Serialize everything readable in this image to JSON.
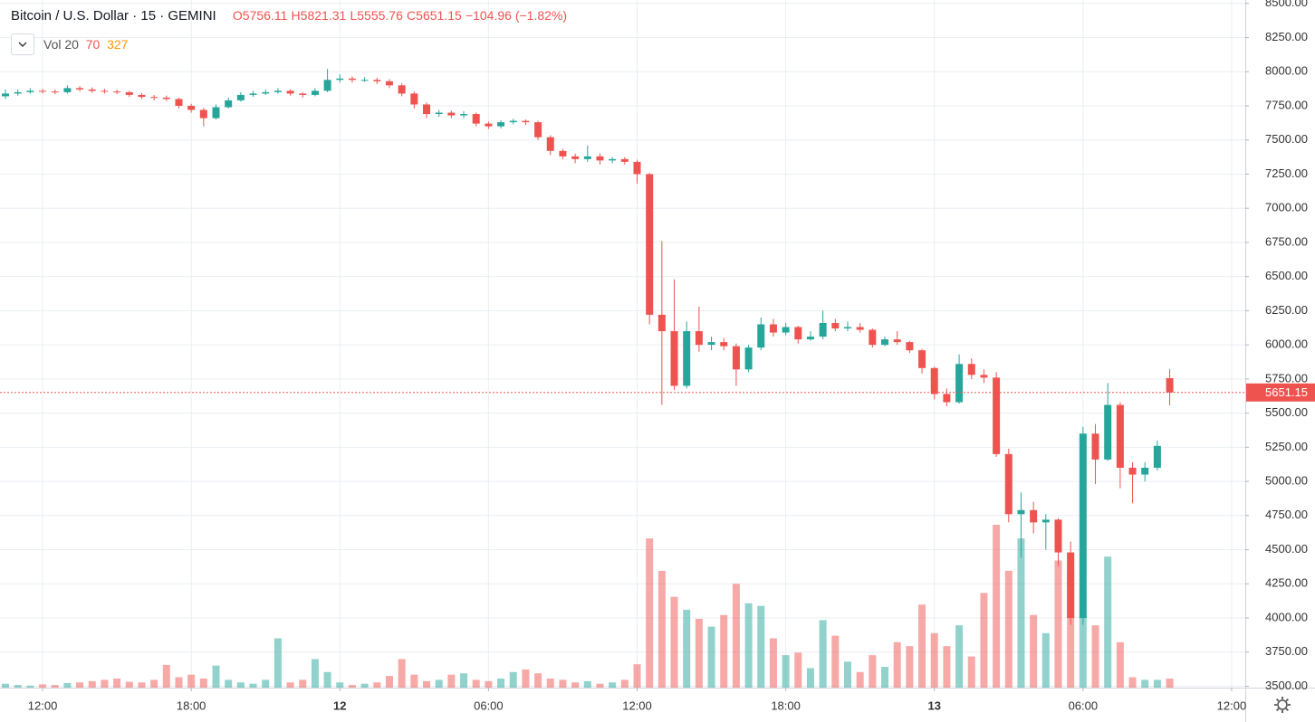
{
  "chart_data": {
    "type": "candlestick",
    "title": "Bitcoin / U.S. Dollar · 15 · GEMINI",
    "legend_labels": [
      "O",
      "H",
      "L",
      "C"
    ],
    "change": "−104.96 (−1.82%)",
    "volume_legend": {
      "name": "Vol",
      "length": 20,
      "value": 70,
      "ma": 327
    },
    "up_color": "#26a69a",
    "down_color": "#ef5350",
    "grid": true,
    "x": [
      10.5,
      11,
      11.5,
      12,
      12.5,
      13,
      13.5,
      14,
      14.5,
      15,
      15.5,
      16,
      16.5,
      17,
      17.5,
      18,
      18.5,
      19,
      19.5,
      20,
      20.5,
      21,
      21.5,
      22,
      22.5,
      23,
      23.5,
      24,
      24.5,
      25,
      25.5,
      26,
      26.5,
      27,
      27.5,
      28,
      28.5,
      29,
      29.5,
      30,
      30.5,
      31,
      31.5,
      32,
      32.5,
      33,
      33.5,
      34,
      34.5,
      35,
      35.5,
      36,
      36.5,
      37,
      37.5,
      38,
      38.5,
      39,
      39.5,
      40,
      40.5,
      41,
      41.5,
      42,
      42.5,
      43,
      43.5,
      44,
      44.5,
      45,
      45.5,
      46,
      46.5,
      47,
      47.5,
      48,
      48.5,
      49,
      49.5,
      50,
      50.5,
      51,
      51.5,
      52,
      52.5,
      53,
      53.5,
      54,
      54.5,
      55,
      55.5,
      56,
      56.5,
      57,
      57.5
    ],
    "open": [
      7820,
      7840,
      7850,
      7860,
      7855,
      7850,
      7880,
      7870,
      7860,
      7855,
      7850,
      7830,
      7815,
      7810,
      7800,
      7750,
      7720,
      7660,
      7740,
      7790,
      7830,
      7840,
      7850,
      7860,
      7840,
      7830,
      7860,
      7940,
      7950,
      7940,
      7940,
      7930,
      7900,
      7840,
      7760,
      7690,
      7700,
      7680,
      7690,
      7620,
      7600,
      7630,
      7640,
      7630,
      7520,
      7420,
      7380,
      7360,
      7380,
      7350,
      7360,
      7340,
      7250,
      6220,
      6100,
      5700,
      6100,
      6000,
      6020,
      5990,
      5820,
      5980,
      6150,
      6090,
      6130,
      6040,
      6060,
      6160,
      6120,
      6130,
      6110,
      6000,
      6040,
      6020,
      5960,
      5830,
      5640,
      5580,
      5860,
      5780,
      5760,
      5200,
      4760,
      4790,
      4700,
      4720,
      4480,
      4000,
      5350,
      5160,
      5560,
      5100,
      5050,
      5100,
      5756.11
    ],
    "high": [
      7870,
      7870,
      7880,
      7875,
      7870,
      7900,
      7895,
      7885,
      7875,
      7870,
      7860,
      7845,
      7830,
      7825,
      7810,
      7765,
      7735,
      7760,
      7810,
      7850,
      7860,
      7870,
      7880,
      7870,
      7850,
      7880,
      8020,
      7980,
      7965,
      7960,
      7955,
      7945,
      7915,
      7855,
      7775,
      7720,
      7715,
      7710,
      7700,
      7635,
      7645,
      7655,
      7650,
      7640,
      7535,
      7435,
      7400,
      7460,
      7400,
      7375,
      7375,
      7355,
      7260,
      6760,
      6480,
      6170,
      6280,
      6060,
      6050,
      6010,
      6000,
      6200,
      6190,
      6160,
      6140,
      6100,
      6250,
      6190,
      6170,
      6160,
      6120,
      6060,
      6100,
      6030,
      5970,
      5840,
      5680,
      5930,
      5900,
      5820,
      5800,
      5240,
      4920,
      4850,
      4760,
      4730,
      4560,
      5400,
      5420,
      5720,
      5580,
      5140,
      5140,
      5300,
      5821.31
    ],
    "low": [
      7800,
      7825,
      7840,
      7840,
      7835,
      7840,
      7855,
      7845,
      7840,
      7835,
      7815,
      7800,
      7790,
      7785,
      7730,
      7700,
      7600,
      7650,
      7730,
      7780,
      7815,
      7830,
      7840,
      7825,
      7810,
      7820,
      7850,
      7920,
      7920,
      7925,
      7910,
      7880,
      7820,
      7730,
      7660,
      7670,
      7660,
      7660,
      7600,
      7580,
      7585,
      7615,
      7610,
      7500,
      7390,
      7360,
      7330,
      7340,
      7320,
      7330,
      7320,
      7180,
      6150,
      5560,
      5670,
      5680,
      5950,
      5960,
      5960,
      5700,
      5800,
      5960,
      6060,
      6070,
      6010,
      6030,
      6040,
      6100,
      6100,
      6090,
      5980,
      5990,
      6000,
      5940,
      5790,
      5600,
      5550,
      5570,
      5750,
      5720,
      5180,
      4700,
      4440,
      4620,
      4500,
      4380,
      3950,
      3950,
      4980,
      5150,
      4950,
      4840,
      5000,
      5080,
      5555.76
    ],
    "close": [
      7840,
      7850,
      7860,
      7855,
      7850,
      7880,
      7870,
      7860,
      7855,
      7850,
      7830,
      7815,
      7810,
      7800,
      7750,
      7720,
      7660,
      7740,
      7790,
      7830,
      7840,
      7850,
      7860,
      7840,
      7830,
      7860,
      7940,
      7950,
      7940,
      7940,
      7930,
      7900,
      7840,
      7760,
      7690,
      7700,
      7680,
      7690,
      7620,
      7600,
      7630,
      7640,
      7630,
      7520,
      7420,
      7380,
      7360,
      7380,
      7350,
      7360,
      7340,
      7250,
      6220,
      6100,
      5700,
      6100,
      6000,
      6020,
      5990,
      5820,
      5980,
      6150,
      6090,
      6130,
      6040,
      6060,
      6160,
      6120,
      6130,
      6110,
      6000,
      6040,
      6020,
      5960,
      5830,
      5640,
      5580,
      5860,
      5780,
      5760,
      5200,
      4760,
      4790,
      4700,
      4720,
      4480,
      4000,
      5350,
      5160,
      5560,
      5100,
      5050,
      5100,
      5260,
      5651.15
    ],
    "volume": [
      30,
      20,
      15,
      25,
      20,
      35,
      40,
      50,
      60,
      70,
      45,
      40,
      60,
      175,
      80,
      100,
      70,
      170,
      60,
      40,
      30,
      60,
      380,
      40,
      60,
      220,
      120,
      40,
      20,
      30,
      40,
      90,
      220,
      100,
      50,
      60,
      100,
      110,
      60,
      50,
      70,
      120,
      140,
      110,
      70,
      60,
      40,
      50,
      30,
      40,
      60,
      180,
      1150,
      900,
      700,
      600,
      530,
      470,
      560,
      800,
      650,
      630,
      380,
      250,
      270,
      150,
      520,
      400,
      200,
      120,
      250,
      160,
      350,
      320,
      640,
      420,
      320,
      480,
      240,
      730,
      1255,
      900,
      1150,
      560,
      420,
      980,
      900,
      560,
      480,
      1010,
      350,
      80,
      60,
      60,
      70
    ],
    "vlim": [
      0,
      5300
    ],
    "xlim": [
      10.28,
      60.55
    ],
    "xticks": [
      {
        "value": 12,
        "label": "12:00"
      },
      {
        "value": 18,
        "label": "18:00"
      },
      {
        "value": 24,
        "label": "12"
      },
      {
        "value": 30,
        "label": "06:00"
      },
      {
        "value": 36,
        "label": "12:00"
      },
      {
        "value": 42,
        "label": "18:00"
      },
      {
        "value": 48,
        "label": "13"
      },
      {
        "value": 54,
        "label": "06:00"
      },
      {
        "value": 60,
        "label": "12:00"
      }
    ],
    "ylim": [
      3490,
      8525
    ],
    "yticks": [
      {
        "value": 3500,
        "label": "3500.00"
      },
      {
        "value": 3750,
        "label": "3750.00"
      },
      {
        "value": 4000,
        "label": "4000.00"
      },
      {
        "value": 4250,
        "label": "4250.00"
      },
      {
        "value": 4500,
        "label": "4500.00"
      },
      {
        "value": 4750,
        "label": "4750.00"
      },
      {
        "value": 5000,
        "label": "5000.00"
      },
      {
        "value": 5250,
        "label": "5250.00"
      },
      {
        "value": 5500,
        "label": "5500.00"
      },
      {
        "value": 5750,
        "label": "5750.00"
      },
      {
        "value": 6000,
        "label": "6000.00"
      },
      {
        "value": 6250,
        "label": "6250.00"
      },
      {
        "value": 6500,
        "label": "6500.00"
      },
      {
        "value": 6750,
        "label": "6750.00"
      },
      {
        "value": 7000,
        "label": "7000.00"
      },
      {
        "value": 7250,
        "label": "7250.00"
      },
      {
        "value": 7500,
        "label": "7500.00"
      },
      {
        "value": 7750,
        "label": "7750.00"
      },
      {
        "value": 8000,
        "label": "8000.00"
      },
      {
        "value": 8250,
        "label": "8250.00"
      },
      {
        "value": 8500,
        "label": "8500.00"
      }
    ]
  }
}
